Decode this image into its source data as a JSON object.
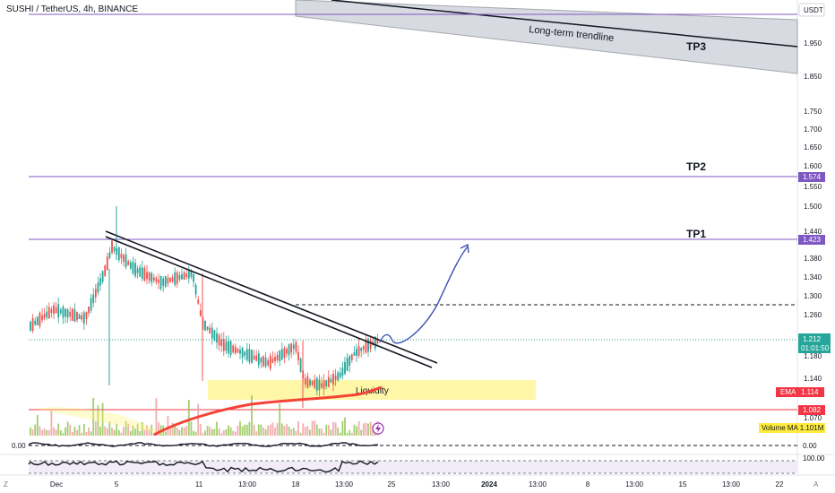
{
  "header": {
    "symbol_line": "SUSHI / TetherUS, 4h, BINANCE"
  },
  "currency_badge": "USDT",
  "annotations": {
    "trendline_label": "Long-term trendline",
    "tp3": "TP3",
    "tp2": "TP2",
    "tp1": "TP1",
    "liquidity": "Liquidity"
  },
  "price_scale": {
    "ticks": [
      "1.950",
      "1.850",
      "1.750",
      "1.700",
      "1.650",
      "1.600",
      "1.550",
      "1.500",
      "1.440",
      "1.380",
      "1.340",
      "1.300",
      "1.260",
      "1.180",
      "1.140",
      "1.070"
    ]
  },
  "price_badges": {
    "tp2_level": "1.574",
    "tp1_level": "1.423",
    "last_price": "1.212",
    "countdown": "01:01:50",
    "ema_label": "EMA",
    "ema_value": "1.114",
    "support_level": "1.082",
    "volume_ma": "Volume MA  1.101M"
  },
  "indicator_panes": {
    "pane1_left": "0.00",
    "pane1_right": "0.00",
    "pane2_right": "100.00"
  },
  "time_axis": {
    "labels": [
      "Dec",
      "5",
      "11",
      "13:00",
      "18",
      "13:00",
      "25",
      "13:00",
      "2024",
      "13:00",
      "8",
      "13:00",
      "15",
      "13:00",
      "22"
    ],
    "left_corner": "Z",
    "right_corner": "A"
  },
  "colors": {
    "up": "#26a69a",
    "down": "#ef5350",
    "level_line": "#7e57c2",
    "ema": "#f44336",
    "liquidity_zone": "#fff59d",
    "last_price_badge": "#26a69a",
    "support_badge": "#f23645"
  },
  "icons": {
    "alert": "lightning-icon"
  }
}
